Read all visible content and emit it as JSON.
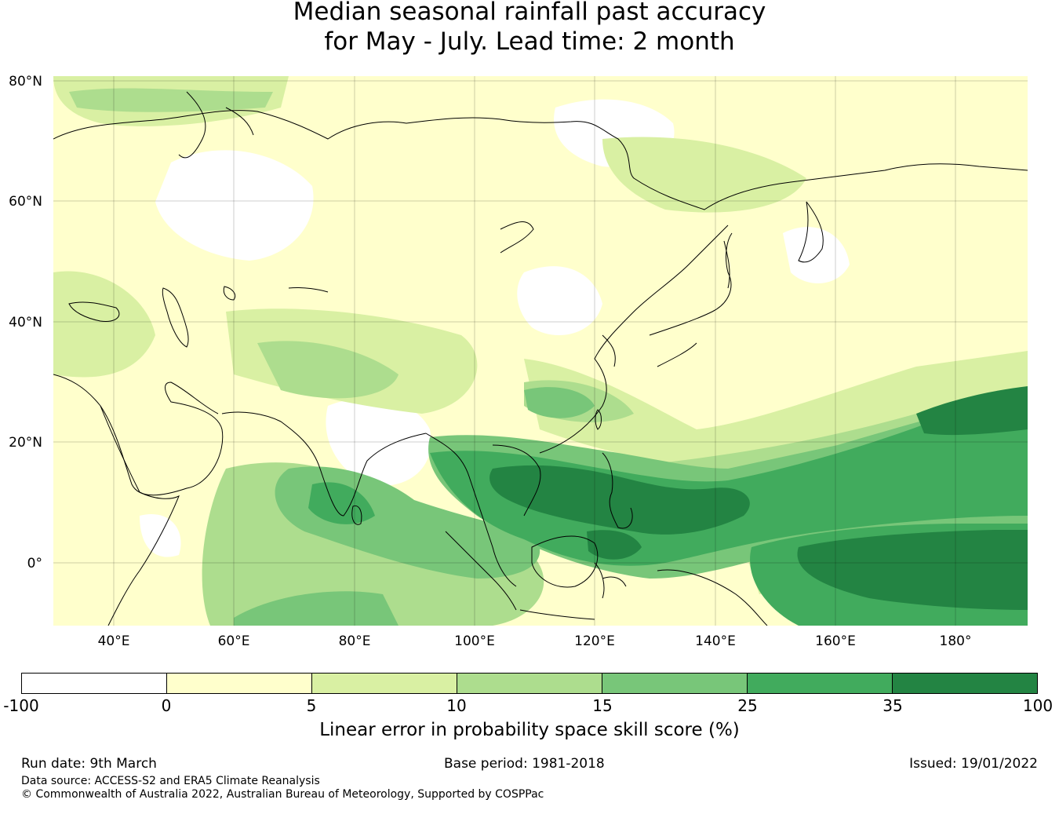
{
  "title": {
    "line1": "Median seasonal rainfall past accuracy",
    "line2": "for May - July. Lead time: 2 month"
  },
  "map": {
    "lat_labels": [
      "80°N",
      "60°N",
      "40°N",
      "20°N",
      "0°"
    ],
    "lon_labels": [
      "40°E",
      "60°E",
      "80°E",
      "100°E",
      "120°E",
      "140°E",
      "160°E",
      "180°"
    ]
  },
  "colorbar": {
    "ticks": [
      "-100",
      "0",
      "5",
      "10",
      "15",
      "25",
      "35",
      "100"
    ],
    "colors": [
      "#ffffff",
      "#ffffcc",
      "#d9f0a3",
      "#addd8e",
      "#78c679",
      "#41ab5d",
      "#238443"
    ],
    "label": "Linear error in probability space skill score (%)"
  },
  "footer": {
    "run_date": "Run date: 9th March",
    "base_period": "Base period: 1981-2018",
    "issued": "Issued: 19/01/2022",
    "data_source": "Data source: ACCESS-S2 and ERA5 Climate Reanalysis",
    "copyright": "© Commonwealth of Australia 2022, Australian Bureau of Meteorology, Supported by COSPPac"
  }
}
